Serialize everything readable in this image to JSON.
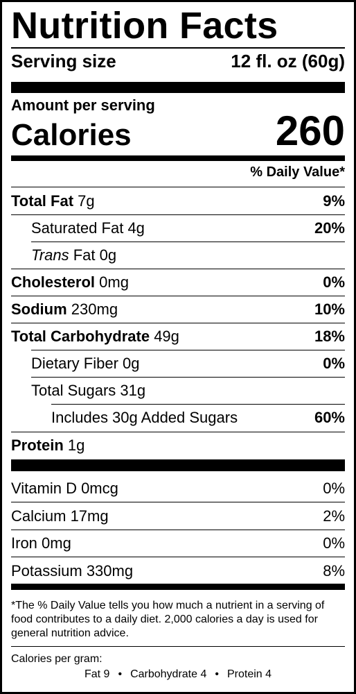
{
  "title": "Nutrition Facts",
  "serving": {
    "label": "Serving size",
    "value": "12 fl. oz (60g)"
  },
  "amount_per_serving": "Amount per serving",
  "calories": {
    "label": "Calories",
    "value": "260"
  },
  "daily_value_header": "% Daily Value*",
  "nutrients": [
    {
      "name": "Total Fat",
      "bold": true,
      "amount": "7g",
      "dv": "9%",
      "indent": 0
    },
    {
      "name": "Saturated Fat",
      "bold": false,
      "amount": "4g",
      "dv": "20%",
      "indent": 1
    },
    {
      "name_italic": "Trans",
      "name": "Fat",
      "bold": false,
      "amount": "0g",
      "dv": "",
      "indent": 1
    },
    {
      "name": "Cholesterol",
      "bold": true,
      "amount": "0mg",
      "dv": "0%",
      "indent": 0
    },
    {
      "name": "Sodium",
      "bold": true,
      "amount": "230mg",
      "dv": "10%",
      "indent": 0
    },
    {
      "name": "Total Carbohydrate",
      "bold": true,
      "amount": "49g",
      "dv": "18%",
      "indent": 0
    },
    {
      "name": "Dietary Fiber",
      "bold": false,
      "amount": "0g",
      "dv": "0%",
      "indent": 1
    },
    {
      "name": "Total Sugars",
      "bold": false,
      "amount": "31g",
      "dv": "",
      "indent": 1
    },
    {
      "name": "Includes 30g Added Sugars",
      "bold": false,
      "amount": "",
      "dv": "60%",
      "indent": 2
    },
    {
      "name": "Protein",
      "bold": true,
      "amount": "1g",
      "dv": "",
      "indent": 0
    }
  ],
  "vitamins": [
    {
      "name": "Vitamin D 0mcg",
      "dv": "0%"
    },
    {
      "name": "Calcium 17mg",
      "dv": "2%"
    },
    {
      "name": "Iron 0mg",
      "dv": "0%"
    },
    {
      "name": "Potassium 330mg",
      "dv": "8%"
    }
  ],
  "footnote": "*The % Daily Value tells you how much a nutrient in a serving of food contributes to a daily diet. 2,000 calories a day is used for general nutrition advice.",
  "calories_per_gram": {
    "title": "Calories per gram:",
    "fat": "Fat 9",
    "carbohydrate": "Carbohydrate 4",
    "protein": "Protein 4",
    "separator": "•"
  }
}
